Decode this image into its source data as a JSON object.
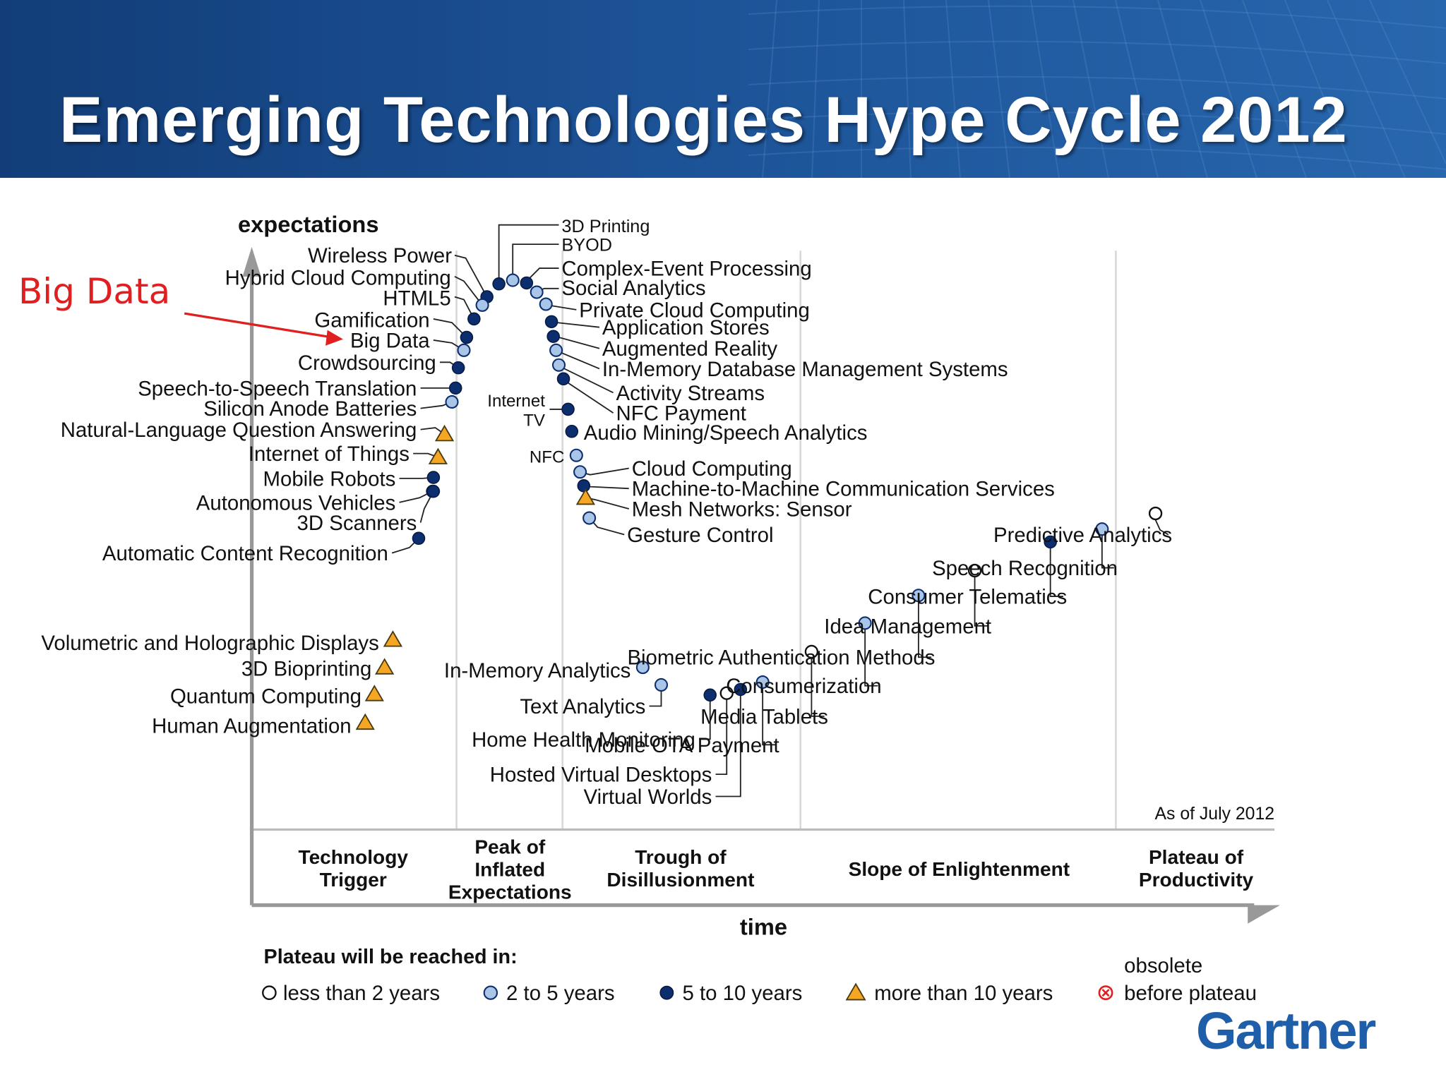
{
  "title": "Emerging Technologies Hype Cycle 2012",
  "annotation": "Big Data",
  "brand": "Gartner",
  "as_of": "As of July 2012",
  "axes": {
    "y_label": "expectations",
    "x_label": "time"
  },
  "phases": [
    {
      "id": "trigger",
      "lines": [
        "Technology",
        "Trigger"
      ]
    },
    {
      "id": "peak",
      "lines": [
        "Peak of",
        "Inflated",
        "Expectations"
      ]
    },
    {
      "id": "trough",
      "lines": [
        "Trough of",
        "Disillusionment"
      ]
    },
    {
      "id": "slope",
      "lines": [
        "Slope of Enlightenment"
      ]
    },
    {
      "id": "plateau",
      "lines": [
        "Plateau of",
        "Productivity"
      ]
    }
  ],
  "legend": {
    "heading": "Plateau will be reached in:",
    "items": [
      {
        "marker": "open-circle",
        "label": "less than 2 years"
      },
      {
        "marker": "light-circle",
        "label": "2 to 5 years"
      },
      {
        "marker": "dark-circle",
        "label": "5 to 10 years"
      },
      {
        "marker": "triangle",
        "label": "more than 10 years"
      },
      {
        "marker": "obsolete",
        "label": "before plateau",
        "label_top": "obsolete"
      }
    ]
  },
  "colors": {
    "curve": "#a8a8a8",
    "dark_dot": "#0d2e6e",
    "light_dot": "#a9c6e8",
    "triangle": "#f5a623",
    "annotation": "#e02020",
    "banner": "#1c5296",
    "brand": "#1f5ea8"
  },
  "technologies": [
    {
      "name": "Wireless Power",
      "plateau": "5 to 10 years"
    },
    {
      "name": "Hybrid Cloud Computing",
      "plateau": "2 to 5 years"
    },
    {
      "name": "HTML5",
      "plateau": "5 to 10 years"
    },
    {
      "name": "Gamification",
      "plateau": "5 to 10 years"
    },
    {
      "name": "Big Data",
      "plateau": "2 to 5 years"
    },
    {
      "name": "Crowdsourcing",
      "plateau": "5 to 10 years"
    },
    {
      "name": "Speech-to-Speech Translation",
      "plateau": "5 to 10 years"
    },
    {
      "name": "Silicon Anode Batteries",
      "plateau": "2 to 5 years"
    },
    {
      "name": "Natural-Language Question Answering",
      "plateau": "more than 10 years"
    },
    {
      "name": "Internet of Things",
      "plateau": "more than 10 years"
    },
    {
      "name": "Mobile Robots",
      "plateau": "5 to 10 years"
    },
    {
      "name": "Autonomous Vehicles",
      "plateau": "5 to 10 years"
    },
    {
      "name": "3D Scanners",
      "plateau": "5 to 10 years"
    },
    {
      "name": "Automatic Content Recognition",
      "plateau": "5 to 10 years"
    },
    {
      "name": "Volumetric and Holographic Displays",
      "plateau": "more than 10 years"
    },
    {
      "name": "3D Bioprinting",
      "plateau": "more than 10 years"
    },
    {
      "name": "Quantum Computing",
      "plateau": "more than 10 years"
    },
    {
      "name": "Human Augmentation",
      "plateau": "more than 10 years"
    },
    {
      "name": "3D Printing",
      "plateau": "5 to 10 years"
    },
    {
      "name": "BYOD",
      "plateau": "2 to 5 years"
    },
    {
      "name": "Complex-Event Processing",
      "plateau": "5 to 10 years"
    },
    {
      "name": "Social Analytics",
      "plateau": "2 to 5 years"
    },
    {
      "name": "Private Cloud Computing",
      "plateau": "2 to 5 years"
    },
    {
      "name": "Application Stores",
      "plateau": "5 to 10 years"
    },
    {
      "name": "Augmented Reality",
      "plateau": "5 to 10 years"
    },
    {
      "name": "In-Memory Database Management Systems",
      "plateau": "2 to 5 years"
    },
    {
      "name": "Activity Streams",
      "plateau": "2 to 5 years"
    },
    {
      "name": "Internet TV",
      "plateau": "5 to 10 years"
    },
    {
      "name": "NFC Payment",
      "plateau": "5 to 10 years"
    },
    {
      "name": "Audio Mining/Speech Analytics",
      "plateau": "5 to 10 years"
    },
    {
      "name": "NFC",
      "plateau": "2 to 5 years"
    },
    {
      "name": "Cloud Computing",
      "plateau": "2 to 5 years"
    },
    {
      "name": "Machine-to-Machine Communication Services",
      "plateau": "5 to 10 years"
    },
    {
      "name": "Mesh Networks: Sensor",
      "plateau": "more than 10 years"
    },
    {
      "name": "Gesture Control",
      "plateau": "2 to 5 years"
    },
    {
      "name": "In-Memory Analytics",
      "plateau": "2 to 5 years"
    },
    {
      "name": "Text Analytics",
      "plateau": "2 to 5 years"
    },
    {
      "name": "Home Health Monitoring",
      "plateau": "5 to 10 years"
    },
    {
      "name": "Hosted Virtual Desktops",
      "plateau": "less than 2 years"
    },
    {
      "name": "Virtual Worlds",
      "plateau": "5 to 10 years"
    },
    {
      "name": "Mobile OTA Payment",
      "plateau": "2 to 5 years"
    },
    {
      "name": "Media Tablets",
      "plateau": "less than 2 years"
    },
    {
      "name": "Consumerization",
      "plateau": "2 to 5 years"
    },
    {
      "name": "Biometric Authentication Methods",
      "plateau": "2 to 5 years"
    },
    {
      "name": "Idea Management",
      "plateau": "less than 2 years"
    },
    {
      "name": "Consumer Telematics",
      "plateau": "5 to 10 years"
    },
    {
      "name": "Speech Recognition",
      "plateau": "2 to 5 years"
    },
    {
      "name": "Predictive Analytics",
      "plateau": "less than 2 years"
    }
  ]
}
